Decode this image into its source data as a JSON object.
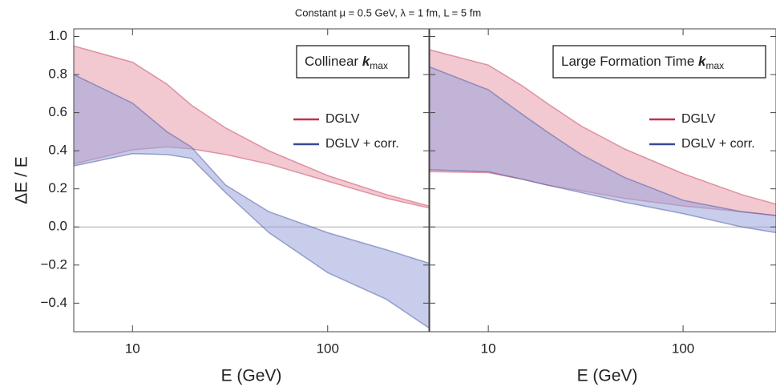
{
  "title": "Constant μ = 0.5 GeV, λ = 1 fm, L = 5 fm",
  "chart_data": [
    {
      "type": "band",
      "x_label": "E (GeV)",
      "y_label": "ΔE / E",
      "annotation": {
        "text": "Collinear ",
        "symbol": "k",
        "subscript": "max"
      },
      "x": [
        5,
        10,
        15,
        20,
        30,
        50,
        100,
        200,
        330
      ],
      "series": [
        {
          "name": "DGLV",
          "color": "#c0304a",
          "fill": "#e89aab",
          "upper": [
            0.95,
            0.865,
            0.75,
            0.64,
            0.52,
            0.4,
            0.27,
            0.17,
            0.11
          ],
          "lower": [
            0.33,
            0.405,
            0.42,
            0.41,
            0.38,
            0.33,
            0.24,
            0.15,
            0.1
          ]
        },
        {
          "name": "DGLV + corr.",
          "color": "#3a4a9a",
          "fill": "#9aa4dc",
          "upper": [
            0.8,
            0.65,
            0.5,
            0.42,
            0.22,
            0.08,
            -0.03,
            -0.12,
            -0.19
          ],
          "lower": [
            0.32,
            0.385,
            0.38,
            0.36,
            0.18,
            -0.03,
            -0.24,
            -0.38,
            -0.53
          ]
        }
      ],
      "xscale": "log",
      "xlim": [
        5,
        330
      ],
      "xticks": [
        10,
        100
      ],
      "ylim": [
        -0.55,
        1.04
      ],
      "yticks": [
        {
          "value": -0.4,
          "label": "−0.4"
        },
        {
          "value": -0.2,
          "label": "−0.2"
        },
        {
          "value": 0,
          "label": "0.0"
        },
        0.2,
        0.4,
        0.6,
        0.8,
        {
          "value": 1,
          "label": "1.0"
        }
      ],
      "zero_line": true
    },
    {
      "type": "band",
      "x_label": "E (GeV)",
      "annotation": {
        "text": "Large Formation Time ",
        "symbol": "k",
        "subscript": "max"
      },
      "x": [
        5,
        10,
        15,
        20,
        30,
        50,
        100,
        200,
        300
      ],
      "series": [
        {
          "name": "DGLV",
          "color": "#c0304a",
          "fill": "#e89aab",
          "upper": [
            0.93,
            0.85,
            0.74,
            0.65,
            0.53,
            0.41,
            0.28,
            0.17,
            0.12
          ],
          "lower": [
            0.29,
            0.285,
            0.25,
            0.22,
            0.19,
            0.15,
            0.11,
            0.08,
            0.06
          ]
        },
        {
          "name": "DGLV + corr.",
          "color": "#3a4a9a",
          "fill": "#9aa4dc",
          "upper": [
            0.84,
            0.72,
            0.59,
            0.5,
            0.38,
            0.26,
            0.14,
            0.08,
            0.06
          ],
          "lower": [
            0.3,
            0.29,
            0.25,
            0.22,
            0.18,
            0.13,
            0.07,
            0.0,
            -0.03
          ]
        }
      ],
      "xscale": "log",
      "xlim": [
        5,
        300
      ],
      "xticks": [
        10,
        100
      ],
      "ylim": [
        -0.55,
        1.04
      ],
      "yticks": [
        -0.4,
        -0.2,
        0,
        0.2,
        0.4,
        0.6,
        0.8,
        1
      ],
      "zero_line": true
    }
  ]
}
